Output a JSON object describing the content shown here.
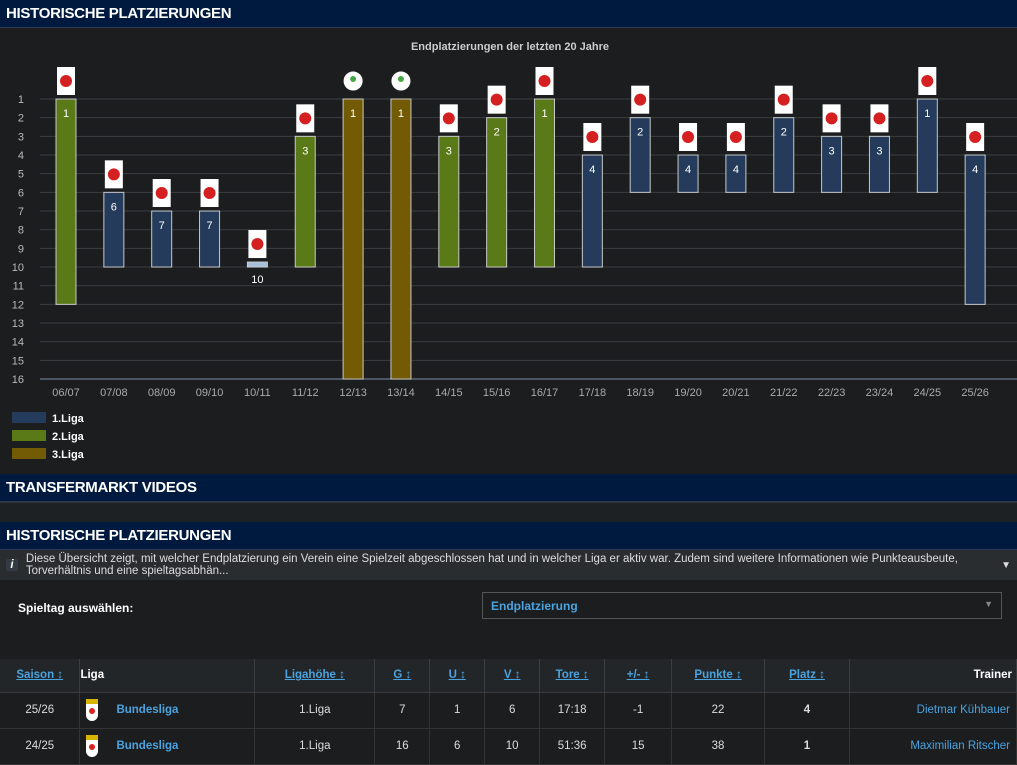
{
  "sections": {
    "chart_title": "HISTORISCHE PLATZIERUNGEN",
    "videos_title": "TRANSFERMARKT VIDEOS",
    "table_title": "HISTORISCHE PLATZIERUNGEN"
  },
  "info_text": "Diese Übersicht zeigt, mit welcher Endplatzierung ein Verein eine Spielzeit abgeschlossen hat und in welcher Liga er aktiv war. Zudem sind weitere Informationen wie Punkteausbeute, Torverhältnis und eine spieltagsabhän...",
  "select": {
    "label": "Spieltag auswählen:",
    "value": "Endplatzierung"
  },
  "chart_data": {
    "type": "bar",
    "title": "Endplatzierungen der letzten 20 Jahre",
    "ylim": [
      1,
      16
    ],
    "yticks": [
      "1",
      "2",
      "3",
      "4",
      "5",
      "6",
      "7",
      "8",
      "9",
      "10",
      "11",
      "12",
      "13",
      "14",
      "15",
      "16"
    ],
    "categories": [
      "06/07",
      "07/08",
      "08/09",
      "09/10",
      "10/11",
      "11/12",
      "12/13",
      "13/14",
      "14/15",
      "15/16",
      "16/17",
      "17/18",
      "18/19",
      "19/20",
      "20/21",
      "21/22",
      "22/23",
      "23/24",
      "24/25",
      "25/26"
    ],
    "placement": [
      1,
      6,
      7,
      7,
      10,
      3,
      1,
      1,
      3,
      2,
      1,
      4,
      2,
      4,
      4,
      2,
      3,
      3,
      1,
      4
    ],
    "range_end": [
      12,
      10,
      10,
      10,
      10,
      10,
      16,
      16,
      10,
      10,
      10,
      10,
      6,
      6,
      6,
      6,
      6,
      6,
      6,
      12
    ],
    "league": [
      2,
      1,
      1,
      1,
      1,
      2,
      3,
      3,
      2,
      2,
      2,
      1,
      1,
      1,
      1,
      1,
      1,
      1,
      1,
      1
    ],
    "legend": [
      {
        "label": "1.Liga",
        "color": "#243b5b"
      },
      {
        "label": "2.Liga",
        "color": "#5a7a18"
      },
      {
        "label": "3.Liga",
        "color": "#735a04"
      }
    ]
  },
  "table": {
    "headers": [
      "Saison ↕",
      "Liga",
      "Ligahöhe ↕",
      "G ↕",
      "U ↕",
      "V ↕",
      "Tore ↕",
      "+/- ↕",
      "Punkte ↕",
      "Platz ↕",
      "Trainer"
    ],
    "rows": [
      [
        "25/26",
        "Bundesliga",
        "1.Liga",
        "7",
        "1",
        "6",
        "17:18",
        "-1",
        "22",
        "4",
        "Dietmar Kühbauer"
      ],
      [
        "24/25",
        "Bundesliga",
        "1.Liga",
        "16",
        "6",
        "10",
        "51:36",
        "15",
        "38",
        "1",
        "Maximilian Ritscher"
      ]
    ]
  }
}
